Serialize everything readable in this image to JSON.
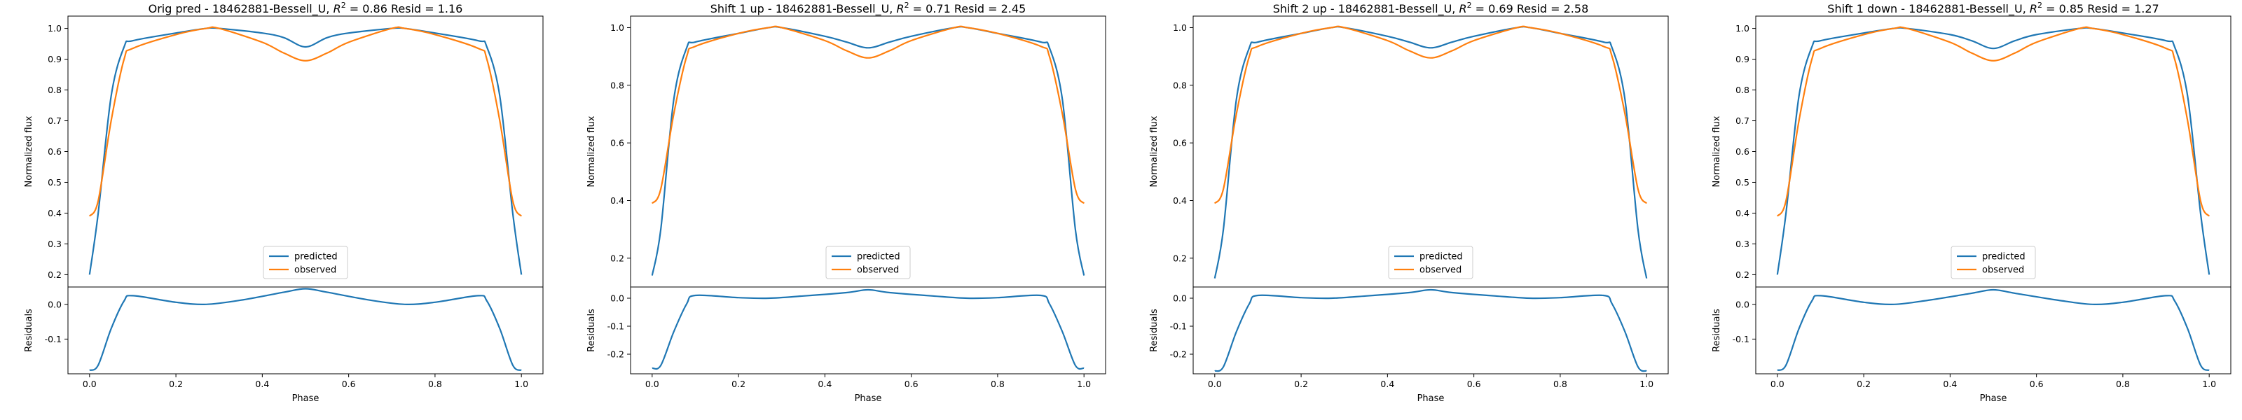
{
  "colors": {
    "predicted": "#1f77b4",
    "observed": "#ff7f0e",
    "axis": "#000000"
  },
  "chart_data": [
    {
      "type": "line",
      "title": "Orig pred - 18462881-Bessell_U, R^2 = 0.86 Resid = 1.16",
      "title_parts": {
        "prefix": "Orig pred - 18462881-Bessell_U, ",
        "r2_sym": "R",
        "r2_exp": "2",
        "suffix": " = 0.86 Resid = 1.16"
      },
      "top": {
        "ylabel": "Normalized flux",
        "ylim": [
          0.16,
          1.04
        ],
        "yticks": [
          0.2,
          0.3,
          0.4,
          0.5,
          0.6,
          0.7,
          0.8,
          0.9,
          1.0
        ],
        "legend": [
          "predicted",
          "observed"
        ],
        "legend_loc": "lower center",
        "series": [
          {
            "name": "predicted",
            "color": "#1f77b4",
            "x": [
              0.0,
              0.02,
              0.05,
              0.08,
              0.1,
              0.2,
              0.27,
              0.3,
              0.4,
              0.45,
              0.5,
              0.55,
              0.6,
              0.7,
              0.73,
              0.8,
              0.9,
              0.92,
              0.95,
              0.98,
              1.0
            ],
            "y": [
              0.2,
              0.4,
              0.78,
              0.94,
              0.96,
              0.985,
              1.0,
              1.0,
              0.985,
              0.97,
              0.94,
              0.97,
              0.985,
              1.0,
              1.0,
              0.985,
              0.96,
              0.94,
              0.78,
              0.4,
              0.2
            ]
          },
          {
            "name": "observed",
            "color": "#ff7f0e",
            "x": [
              0.0,
              0.02,
              0.05,
              0.08,
              0.1,
              0.2,
              0.27,
              0.3,
              0.4,
              0.45,
              0.5,
              0.55,
              0.6,
              0.7,
              0.73,
              0.8,
              0.9,
              0.92,
              0.95,
              0.98,
              1.0
            ],
            "y": [
              0.39,
              0.44,
              0.7,
              0.9,
              0.935,
              0.98,
              1.0,
              1.0,
              0.955,
              0.92,
              0.895,
              0.92,
              0.955,
              1.0,
              1.0,
              0.98,
              0.935,
              0.9,
              0.7,
              0.44,
              0.39
            ]
          }
        ]
      },
      "bottom": {
        "ylabel": "Residuals",
        "ylim": [
          -0.2,
          0.05
        ],
        "yticks": [
          -0.1,
          0.0
        ],
        "series": [
          {
            "name": "residual",
            "color": "#1f77b4",
            "x": [
              0.0,
              0.02,
              0.05,
              0.08,
              0.1,
              0.2,
              0.27,
              0.35,
              0.45,
              0.5,
              0.55,
              0.65,
              0.73,
              0.8,
              0.9,
              0.92,
              0.95,
              0.98,
              1.0
            ],
            "y": [
              -0.19,
              -0.175,
              -0.07,
              0.01,
              0.025,
              0.006,
              0.0,
              0.012,
              0.035,
              0.045,
              0.035,
              0.012,
              0.0,
              0.006,
              0.025,
              0.01,
              -0.07,
              -0.175,
              -0.19
            ]
          }
        ]
      },
      "xlabel": "Phase",
      "xlim": [
        -0.05,
        1.05
      ],
      "xticks": [
        "0.0",
        "0.2",
        "0.4",
        "0.6",
        "0.8",
        "1.0"
      ]
    },
    {
      "type": "line",
      "title": "Shift 1 up - 18462881-Bessell_U, R^2 = 0.71 Resid = 2.45",
      "title_parts": {
        "prefix": "Shift 1 up - 18462881-Bessell_U, ",
        "r2_sym": "R",
        "r2_exp": "2",
        "suffix": " = 0.71 Resid = 2.45"
      },
      "top": {
        "ylabel": "Normalized flux",
        "ylim": [
          0.1,
          1.04
        ],
        "yticks": [
          0.2,
          0.4,
          0.6,
          0.8,
          1.0
        ],
        "legend": [
          "predicted",
          "observed"
        ],
        "legend_loc": "lower center",
        "series": [
          {
            "name": "predicted",
            "color": "#1f77b4",
            "x": [
              0.0,
              0.02,
              0.05,
              0.08,
              0.1,
              0.2,
              0.27,
              0.3,
              0.4,
              0.45,
              0.5,
              0.55,
              0.6,
              0.7,
              0.73,
              0.8,
              0.9,
              0.92,
              0.95,
              0.98,
              1.0
            ],
            "y": [
              0.14,
              0.3,
              0.75,
              0.93,
              0.95,
              0.98,
              1.0,
              1.0,
              0.97,
              0.95,
              0.93,
              0.95,
              0.97,
              1.0,
              1.0,
              0.98,
              0.95,
              0.93,
              0.75,
              0.3,
              0.14
            ]
          },
          {
            "name": "observed",
            "color": "#ff7f0e",
            "x": [
              0.0,
              0.02,
              0.05,
              0.08,
              0.1,
              0.2,
              0.27,
              0.3,
              0.4,
              0.45,
              0.5,
              0.55,
              0.6,
              0.7,
              0.73,
              0.8,
              0.9,
              0.92,
              0.95,
              0.98,
              1.0
            ],
            "y": [
              0.39,
              0.44,
              0.7,
              0.9,
              0.935,
              0.98,
              1.0,
              1.0,
              0.955,
              0.92,
              0.895,
              0.92,
              0.955,
              1.0,
              1.0,
              0.98,
              0.935,
              0.9,
              0.7,
              0.44,
              0.39
            ]
          }
        ]
      },
      "bottom": {
        "ylabel": "Residuals",
        "ylim": [
          -0.27,
          0.04
        ],
        "yticks": [
          -0.2,
          -0.1,
          0.0
        ],
        "series": [
          {
            "name": "residual",
            "color": "#1f77b4",
            "x": [
              0.0,
              0.02,
              0.05,
              0.08,
              0.1,
              0.2,
              0.27,
              0.35,
              0.45,
              0.5,
              0.55,
              0.65,
              0.73,
              0.8,
              0.9,
              0.92,
              0.95,
              0.98,
              1.0
            ],
            "y": [
              -0.25,
              -0.24,
              -0.12,
              -0.02,
              0.01,
              0.002,
              0.0,
              0.008,
              0.02,
              0.03,
              0.02,
              0.008,
              0.0,
              0.002,
              0.01,
              -0.02,
              -0.12,
              -0.24,
              -0.25
            ]
          }
        ]
      },
      "xlabel": "Phase",
      "xlim": [
        -0.05,
        1.05
      ],
      "xticks": [
        "0.0",
        "0.2",
        "0.4",
        "0.6",
        "0.8",
        "1.0"
      ]
    },
    {
      "type": "line",
      "title": "Shift 2 up - 18462881-Bessell_U, R^2 = 0.69 Resid = 2.58",
      "title_parts": {
        "prefix": "Shift 2 up - 18462881-Bessell_U, ",
        "r2_sym": "R",
        "r2_exp": "2",
        "suffix": " = 0.69 Resid = 2.58"
      },
      "top": {
        "ylabel": "Normalized flux",
        "ylim": [
          0.1,
          1.04
        ],
        "yticks": [
          0.2,
          0.4,
          0.6,
          0.8,
          1.0
        ],
        "legend": [
          "predicted",
          "observed"
        ],
        "legend_loc": "lower center",
        "series": [
          {
            "name": "predicted",
            "color": "#1f77b4",
            "x": [
              0.0,
              0.02,
              0.05,
              0.08,
              0.1,
              0.2,
              0.27,
              0.3,
              0.4,
              0.45,
              0.5,
              0.55,
              0.6,
              0.7,
              0.73,
              0.8,
              0.9,
              0.92,
              0.95,
              0.98,
              1.0
            ],
            "y": [
              0.13,
              0.3,
              0.75,
              0.93,
              0.95,
              0.98,
              1.0,
              1.0,
              0.97,
              0.95,
              0.93,
              0.95,
              0.97,
              1.0,
              1.0,
              0.98,
              0.95,
              0.93,
              0.75,
              0.3,
              0.13
            ]
          },
          {
            "name": "observed",
            "color": "#ff7f0e",
            "x": [
              0.0,
              0.02,
              0.05,
              0.08,
              0.1,
              0.2,
              0.27,
              0.3,
              0.4,
              0.45,
              0.5,
              0.55,
              0.6,
              0.7,
              0.73,
              0.8,
              0.9,
              0.92,
              0.95,
              0.98,
              1.0
            ],
            "y": [
              0.39,
              0.44,
              0.7,
              0.9,
              0.935,
              0.98,
              1.0,
              1.0,
              0.955,
              0.92,
              0.895,
              0.92,
              0.955,
              1.0,
              1.0,
              0.98,
              0.935,
              0.9,
              0.7,
              0.44,
              0.39
            ]
          }
        ]
      },
      "bottom": {
        "ylabel": "Residuals",
        "ylim": [
          -0.27,
          0.04
        ],
        "yticks": [
          -0.2,
          -0.1,
          0.0
        ],
        "series": [
          {
            "name": "residual",
            "color": "#1f77b4",
            "x": [
              0.0,
              0.02,
              0.05,
              0.08,
              0.1,
              0.2,
              0.27,
              0.35,
              0.45,
              0.5,
              0.55,
              0.65,
              0.73,
              0.8,
              0.9,
              0.92,
              0.95,
              0.98,
              1.0
            ],
            "y": [
              -0.26,
              -0.245,
              -0.12,
              -0.02,
              0.01,
              0.002,
              0.0,
              0.008,
              0.02,
              0.03,
              0.02,
              0.008,
              0.0,
              0.002,
              0.01,
              -0.02,
              -0.12,
              -0.245,
              -0.26
            ]
          }
        ]
      },
      "xlabel": "Phase",
      "xlim": [
        -0.05,
        1.05
      ],
      "xticks": [
        "0.0",
        "0.2",
        "0.4",
        "0.6",
        "0.8",
        "1.0"
      ]
    },
    {
      "type": "line",
      "title": "Shift 1 down - 18462881-Bessell_U, R^2 = 0.85 Resid = 1.27",
      "title_parts": {
        "prefix": "Shift 1 down - 18462881-Bessell_U, ",
        "r2_sym": "R",
        "r2_exp": "2",
        "suffix": " = 0.85 Resid = 1.27"
      },
      "top": {
        "ylabel": "Normalized flux",
        "ylim": [
          0.16,
          1.04
        ],
        "yticks": [
          0.2,
          0.3,
          0.4,
          0.5,
          0.6,
          0.7,
          0.8,
          0.9,
          1.0
        ],
        "legend": [
          "predicted",
          "observed"
        ],
        "legend_loc": "lower center",
        "series": [
          {
            "name": "predicted",
            "color": "#1f77b4",
            "x": [
              0.0,
              0.02,
              0.05,
              0.08,
              0.1,
              0.2,
              0.27,
              0.3,
              0.4,
              0.45,
              0.5,
              0.55,
              0.6,
              0.7,
              0.73,
              0.8,
              0.9,
              0.92,
              0.95,
              0.98,
              1.0
            ],
            "y": [
              0.2,
              0.4,
              0.78,
              0.94,
              0.96,
              0.985,
              1.0,
              1.0,
              0.98,
              0.96,
              0.935,
              0.96,
              0.98,
              1.0,
              1.0,
              0.985,
              0.96,
              0.94,
              0.78,
              0.4,
              0.2
            ]
          },
          {
            "name": "observed",
            "color": "#ff7f0e",
            "x": [
              0.0,
              0.02,
              0.05,
              0.08,
              0.1,
              0.2,
              0.27,
              0.3,
              0.4,
              0.45,
              0.5,
              0.55,
              0.6,
              0.7,
              0.73,
              0.8,
              0.9,
              0.92,
              0.95,
              0.98,
              1.0
            ],
            "y": [
              0.39,
              0.44,
              0.7,
              0.9,
              0.935,
              0.98,
              1.0,
              1.0,
              0.955,
              0.92,
              0.895,
              0.92,
              0.955,
              1.0,
              1.0,
              0.98,
              0.935,
              0.9,
              0.7,
              0.44,
              0.39
            ]
          }
        ]
      },
      "bottom": {
        "ylabel": "Residuals",
        "ylim": [
          -0.2,
          0.05
        ],
        "yticks": [
          -0.1,
          0.0
        ],
        "series": [
          {
            "name": "residual",
            "color": "#1f77b4",
            "x": [
              0.0,
              0.02,
              0.05,
              0.08,
              0.1,
              0.2,
              0.27,
              0.35,
              0.45,
              0.5,
              0.55,
              0.65,
              0.73,
              0.8,
              0.9,
              0.92,
              0.95,
              0.98,
              1.0
            ],
            "y": [
              -0.19,
              -0.175,
              -0.07,
              0.01,
              0.025,
              0.006,
              0.0,
              0.012,
              0.032,
              0.042,
              0.032,
              0.012,
              0.0,
              0.006,
              0.025,
              0.01,
              -0.07,
              -0.175,
              -0.19
            ]
          }
        ]
      },
      "xlabel": "Phase",
      "xlim": [
        -0.05,
        1.05
      ],
      "xticks": [
        "0.0",
        "0.2",
        "0.4",
        "0.6",
        "0.8",
        "1.0"
      ]
    }
  ]
}
